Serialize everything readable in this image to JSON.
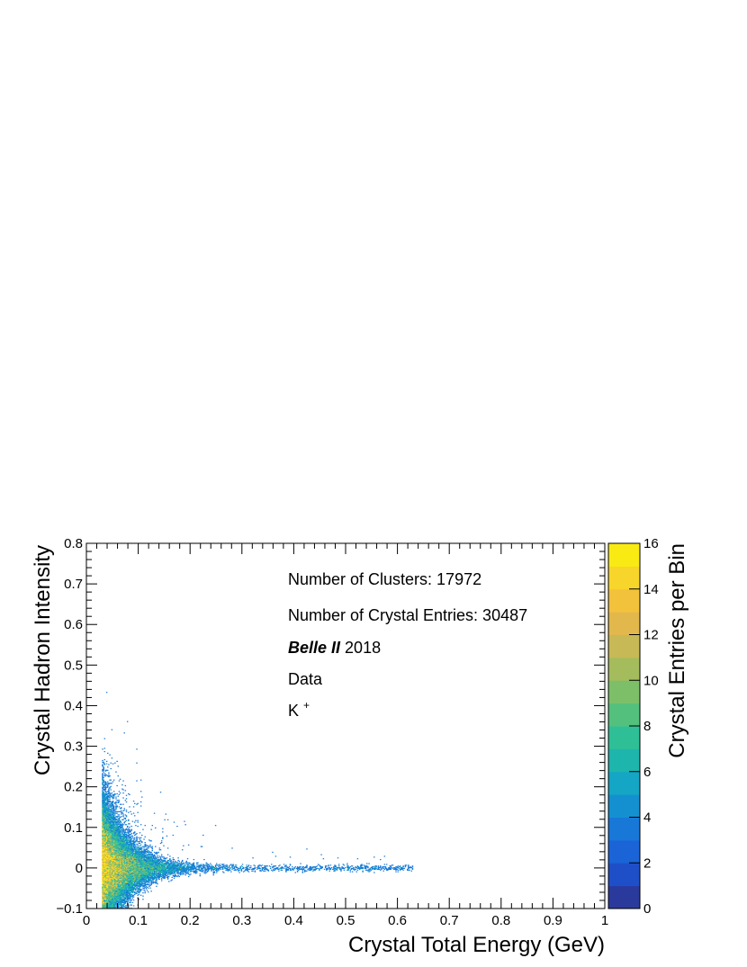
{
  "chart_data": {
    "type": "heatmap",
    "xlabel": "Crystal Total Energy (GeV)",
    "ylabel": "Crystal Hadron Intensity",
    "zlabel": "Crystal Entries per Bin",
    "xlim": [
      0,
      1
    ],
    "ylim": [
      -0.1,
      0.8
    ],
    "zlim": [
      0,
      16
    ],
    "x_ticks": [
      "0",
      "0.1",
      "0.2",
      "0.3",
      "0.4",
      "0.5",
      "0.6",
      "0.7",
      "0.8",
      "0.9",
      "1"
    ],
    "y_ticks": [
      "−0.1",
      "0",
      "0.1",
      "0.2",
      "0.3",
      "0.4",
      "0.5",
      "0.6",
      "0.7",
      "0.8"
    ],
    "z_ticks": [
      "0",
      "2",
      "4",
      "6",
      "8",
      "10",
      "12",
      "14",
      "16"
    ],
    "annotations": {
      "clusters": "Number of Clusters: 17972",
      "entries": "Number of Crystal Entries: 30487",
      "experiment": "Belle II",
      "year": "2018",
      "dataset": "Data",
      "particle": "K",
      "particle_charge": "+"
    },
    "distribution": {
      "x_threshold": 0.03,
      "core_center_y": 0.0,
      "description_points": [
        {
          "x": 0.03,
          "y_spread": 0.1
        },
        {
          "x": 0.1,
          "y_spread": 0.04
        },
        {
          "x": 0.2,
          "y_spread": 0.015
        },
        {
          "x": 0.35,
          "y_spread": 0.006
        }
      ]
    },
    "palette": [
      "#2a3a9c",
      "#1f4fc8",
      "#1a64d8",
      "#1878d8",
      "#1490d0",
      "#14a6c4",
      "#1eb5ad",
      "#2fbf96",
      "#54c07d",
      "#7dbf69",
      "#a4bc5c",
      "#c7b955",
      "#e2b84c",
      "#f3c23c",
      "#f8d52a",
      "#f9ea14"
    ]
  }
}
